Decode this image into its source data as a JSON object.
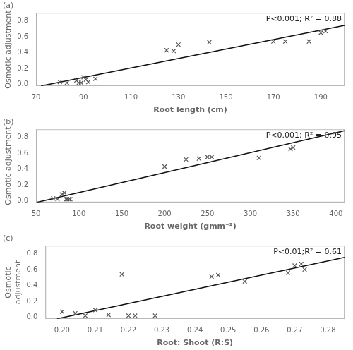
{
  "chart_data": [
    {
      "type": "scatter",
      "title": "(a)",
      "annotation": "P<0.001; R² = 0.88",
      "x_label": "Root length (cm)",
      "y_label": "Osmotic adjustment",
      "xlim": [
        70,
        200
      ],
      "ylim": [
        -0.02,
        0.9
      ],
      "xticks": [
        70,
        90,
        110,
        130,
        150,
        170,
        190
      ],
      "yticks": [
        {
          "value": 0,
          "label": "0.0"
        },
        0.2,
        0.4,
        0.6,
        0.8
      ],
      "grid": false,
      "series": [
        {
          "type": "scatter",
          "marker": "x",
          "color": "#555555",
          "x": [
            80,
            83,
            87,
            88,
            89,
            90,
            91,
            92,
            95,
            125,
            128,
            130,
            143,
            170,
            175,
            185,
            190,
            192
          ],
          "values": [
            0.03,
            0.02,
            0.05,
            0.02,
            0.02,
            0.09,
            0.06,
            0.03,
            0.07,
            0.43,
            0.42,
            0.5,
            0.53,
            0.54,
            0.54,
            0.54,
            0.65,
            0.67
          ]
        },
        {
          "type": "line",
          "color": "#111111",
          "x": [
            72.05,
            200
          ],
          "values": [
            -0.02,
            0.7413
          ]
        }
      ]
    },
    {
      "type": "scatter",
      "title": "(b)",
      "annotation": "P<0.001; R² = 0.95",
      "x_label": "Root weight (gmm⁻²)",
      "y_label": "Osmotic adjustment",
      "xlim": [
        50,
        410
      ],
      "ylim": [
        -0.02,
        0.9
      ],
      "xticks": [
        50,
        100,
        150,
        200,
        250,
        300,
        350,
        400
      ],
      "yticks": [
        {
          "value": 0,
          "label": "0.0"
        },
        0.2,
        0.4,
        0.6,
        0.8
      ],
      "grid": false,
      "series": [
        {
          "type": "scatter",
          "marker": "x",
          "color": "#555555",
          "x": [
            70,
            75,
            80,
            83,
            85,
            86,
            88,
            90,
            200,
            225,
            240,
            250,
            255,
            310,
            347,
            350
          ],
          "values": [
            0.03,
            0.02,
            0.08,
            0.1,
            0.02,
            0.02,
            0.02,
            0.02,
            0.43,
            0.52,
            0.53,
            0.55,
            0.55,
            0.54,
            0.65,
            0.67
          ]
        },
        {
          "type": "line",
          "color": "#111111",
          "x": [
            50.88,
            410
          ],
          "values": [
            -0.02,
            0.8814
          ]
        }
      ]
    },
    {
      "type": "scatter",
      "title": "(c)",
      "annotation": "P<0.01;R² = 0.61",
      "x_label": "Root: Shoot (R:S)",
      "y_label": "Osmotic\nadjustment",
      "xlim": [
        0.195,
        0.285
      ],
      "ylim": [
        -0.02,
        0.9
      ],
      "xticks": [
        {
          "value": 0.2,
          "label": "0.20"
        },
        0.21,
        0.22,
        0.23,
        0.24,
        0.25,
        0.26,
        0.27,
        0.28
      ],
      "yticks": [
        {
          "value": 0,
          "label": "0.0"
        },
        0.2,
        0.4,
        0.6,
        0.8
      ],
      "grid": false,
      "series": [
        {
          "type": "scatter",
          "marker": "x",
          "color": "#555555",
          "x": [
            0.2,
            0.204,
            0.207,
            0.21,
            0.214,
            0.218,
            0.22,
            0.222,
            0.228,
            0.245,
            0.247,
            0.255,
            0.268,
            0.27,
            0.272,
            0.273
          ],
          "values": [
            0.07,
            0.05,
            0.02,
            0.09,
            0.03,
            0.54,
            0.02,
            0.02,
            0.02,
            0.51,
            0.53,
            0.45,
            0.56,
            0.65,
            0.67,
            0.6
          ]
        },
        {
          "type": "line",
          "color": "#111111",
          "x": [
            0.1985,
            0.285
          ],
          "values": [
            -0.02,
            0.7522
          ]
        }
      ]
    }
  ]
}
